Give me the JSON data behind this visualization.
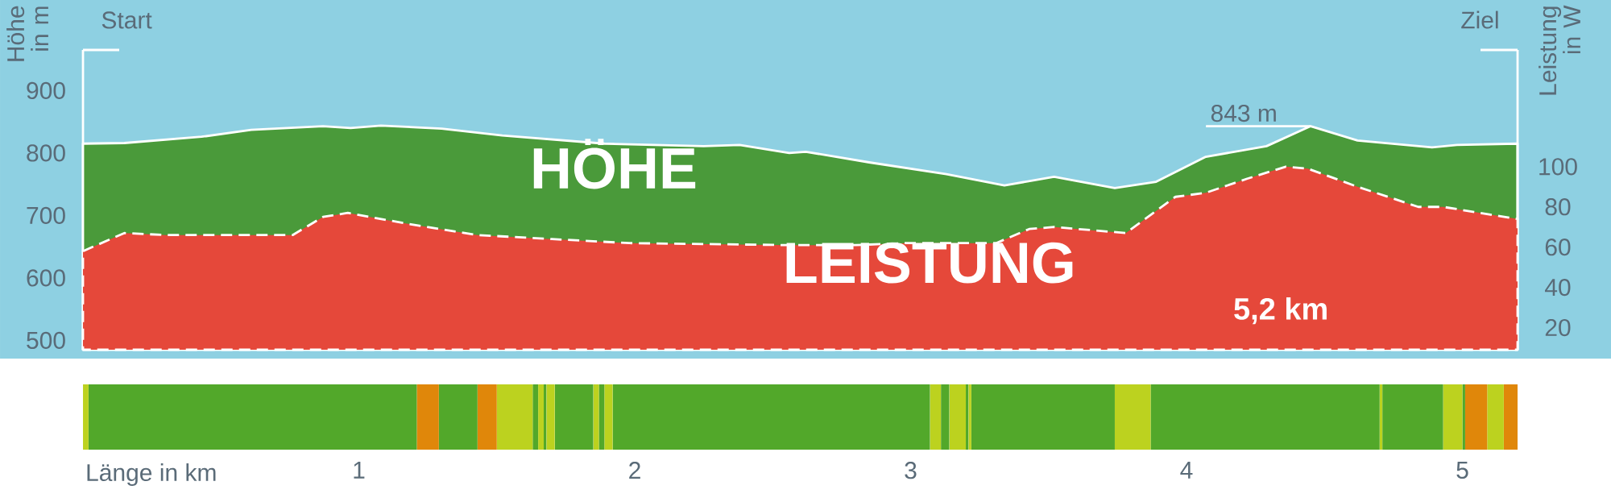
{
  "chart_data": [
    {
      "type": "area",
      "ylabel": "Höhe in m",
      "y2label": "Leistung in W",
      "xlim": [
        0,
        5.2
      ],
      "ylim": [
        485,
        965
      ],
      "yticks": [
        500,
        600,
        700,
        800,
        900
      ],
      "y2lim": [
        9,
        158
      ],
      "y2ticks": [
        20,
        40,
        60,
        80,
        100
      ],
      "tick_labels": "y",
      "marker": "none",
      "series": [
        {
          "name": "HÖHE",
          "color": "#4a9a3a",
          "line_style": "solid",
          "x": [
            0,
            0.15,
            0.43,
            0.61,
            0.87,
            0.97,
            1.08,
            1.3,
            1.52,
            1.89,
            2.25,
            2.38,
            2.56,
            2.62,
            2.85,
            3.13,
            3.34,
            3.52,
            3.74,
            3.89,
            4.07,
            4.29,
            4.45,
            4.62,
            4.89,
            4.98,
            5.2
          ],
          "values": [
            815,
            816,
            826,
            837,
            843,
            840,
            844,
            839,
            828,
            815,
            811,
            813,
            800,
            802,
            785,
            766,
            748,
            762,
            744,
            754,
            794,
            811,
            843,
            820,
            809,
            813,
            815
          ]
        },
        {
          "name": "LEISTUNG",
          "color": "#e5483a",
          "line_style": "dashed",
          "axis": "y2",
          "x": [
            0,
            0.15,
            0.3,
            0.52,
            0.76,
            0.87,
            0.96,
            1.16,
            1.43,
            1.7,
            1.98,
            2.56,
            2.8,
            2.98,
            3.31,
            3.43,
            3.52,
            3.78,
            3.96,
            4.07,
            4.22,
            4.36,
            4.44,
            4.62,
            4.84,
            4.93,
            5.2
          ],
          "values": [
            58,
            67,
            66,
            66,
            66,
            75,
            77,
            72,
            66,
            64,
            62,
            61,
            61,
            62,
            62,
            69,
            70,
            67,
            85,
            87,
            94,
            100,
            99,
            90,
            80,
            80,
            74
          ]
        }
      ],
      "annotations": [
        "Start",
        "Ziel",
        "5,2 km",
        {
          "text": "843 m",
          "x": 4.45,
          "y": 843
        }
      ]
    },
    {
      "type": "bar",
      "orientation": "horizontal",
      "stacked": true,
      "categories": [
        null
      ],
      "xlabel": "Länge in km",
      "xlim": [
        0,
        5.2
      ],
      "xticks": [
        1,
        2,
        3,
        4,
        5
      ],
      "series": [
        {
          "color": "#bcd21f",
          "values": [
            0.02
          ]
        },
        {
          "color": "#52a82a",
          "values": [
            1.19
          ]
        },
        {
          "color": "#e0870a",
          "values": [
            0.08
          ]
        },
        {
          "color": "#52a82a",
          "values": [
            0.14
          ]
        },
        {
          "color": "#e0870a",
          "values": [
            0.07
          ]
        },
        {
          "color": "#bcd21f",
          "values": [
            0.13
          ]
        },
        {
          "color": "#52a82a",
          "values": [
            0.02
          ]
        },
        {
          "color": "#bcd21f",
          "values": [
            0.02
          ]
        },
        {
          "color": "#52a82a",
          "values": [
            0.01
          ]
        },
        {
          "color": "#bcd21f",
          "values": [
            0.03
          ]
        },
        {
          "color": "#52a82a",
          "values": [
            0.14
          ]
        },
        {
          "color": "#bcd21f",
          "values": [
            0.02
          ]
        },
        {
          "color": "#52a82a",
          "values": [
            0.02
          ]
        },
        {
          "color": "#bcd21f",
          "values": [
            0.03
          ]
        },
        {
          "color": "#52a82a",
          "values": [
            1.15
          ]
        },
        {
          "color": "#bcd21f",
          "values": [
            0.04
          ]
        },
        {
          "color": "#52a82a",
          "values": [
            0.03
          ]
        },
        {
          "color": "#bcd21f",
          "values": [
            0.06
          ]
        },
        {
          "color": "#52a82a",
          "values": [
            0.01
          ]
        },
        {
          "color": "#bcd21f",
          "values": [
            0.01
          ]
        },
        {
          "color": "#52a82a",
          "values": [
            0.52
          ]
        },
        {
          "color": "#bcd21f",
          "values": [
            0.13
          ]
        },
        {
          "color": "#52a82a",
          "values": [
            0.83
          ]
        },
        {
          "color": "#bcd21f",
          "values": [
            0.01
          ]
        },
        {
          "color": "#52a82a",
          "values": [
            0.22
          ]
        },
        {
          "color": "#bcd21f",
          "values": [
            0.07
          ]
        },
        {
          "color": "#52a82a",
          "values": [
            0.01
          ]
        },
        {
          "color": "#e0870a",
          "values": [
            0.08
          ]
        },
        {
          "color": "#bcd21f",
          "values": [
            0.06
          ]
        },
        {
          "color": "#e0870a",
          "values": [
            0.05
          ]
        }
      ]
    }
  ]
}
